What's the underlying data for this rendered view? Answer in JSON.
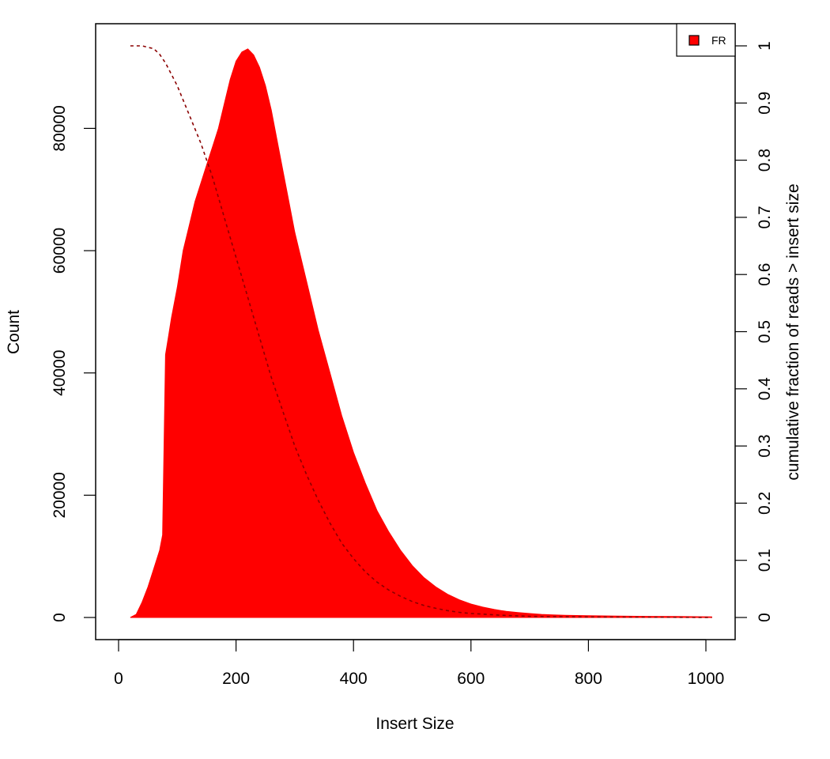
{
  "chart_data": {
    "type": "histogram",
    "xlabel": "Insert Size",
    "ylabel": "Count",
    "y2label": "cumulative fraction of reads > insert size",
    "xlim": [
      0,
      1010
    ],
    "ylim": [
      0,
      93500
    ],
    "y2lim": [
      0,
      1
    ],
    "x_ticks": [
      "0",
      "200",
      "400",
      "600",
      "800",
      "1000"
    ],
    "y_ticks": [
      "0",
      "20000",
      "40000",
      "60000",
      "80000"
    ],
    "y2_ticks": [
      "0",
      "0.1",
      "0.2",
      "0.3",
      "0.4",
      "0.5",
      "0.6",
      "0.7",
      "0.8",
      "0.9",
      "1"
    ],
    "legend": {
      "position": "top-right",
      "entries": [
        {
          "label": "FR",
          "color": "#ff0000"
        }
      ]
    },
    "series": [
      {
        "name": "FR",
        "kind": "histogram",
        "color": "#ff0000",
        "x": [
          20,
          30,
          40,
          50,
          60,
          70,
          75,
          80,
          85,
          90,
          100,
          110,
          120,
          130,
          140,
          150,
          160,
          170,
          180,
          190,
          200,
          210,
          220,
          230,
          240,
          250,
          260,
          270,
          280,
          290,
          300,
          320,
          340,
          360,
          380,
          400,
          420,
          440,
          460,
          480,
          500,
          520,
          540,
          560,
          580,
          600,
          620,
          640,
          660,
          680,
          700,
          720,
          740,
          760,
          780,
          800,
          850,
          900,
          950,
          1000,
          1010
        ],
        "y": [
          0,
          500,
          2500,
          5000,
          8000,
          11000,
          13500,
          43000,
          46000,
          49000,
          54000,
          60000,
          64000,
          68000,
          71000,
          74000,
          77000,
          80000,
          84000,
          88000,
          91000,
          92500,
          93000,
          92000,
          90000,
          87000,
          83000,
          78000,
          73000,
          68000,
          63000,
          55000,
          47000,
          40000,
          33000,
          27000,
          22000,
          17500,
          14000,
          11000,
          8500,
          6500,
          5000,
          3800,
          2900,
          2200,
          1700,
          1300,
          1000,
          800,
          650,
          500,
          420,
          360,
          320,
          280,
          220,
          180,
          150,
          120,
          100
        ]
      },
      {
        "name": "cumulative",
        "kind": "line",
        "axis": "right",
        "color": "#8b0000",
        "dash": "dashed",
        "x": [
          20,
          40,
          60,
          70,
          80,
          90,
          100,
          120,
          140,
          160,
          180,
          200,
          220,
          240,
          260,
          280,
          300,
          320,
          340,
          360,
          380,
          400,
          420,
          440,
          460,
          480,
          500,
          520,
          540,
          560,
          580,
          600,
          650,
          700,
          800,
          900,
          1010
        ],
        "y": [
          1.0,
          1.0,
          0.995,
          0.985,
          0.97,
          0.95,
          0.93,
          0.88,
          0.83,
          0.77,
          0.7,
          0.63,
          0.56,
          0.49,
          0.42,
          0.36,
          0.3,
          0.25,
          0.205,
          0.165,
          0.13,
          0.103,
          0.08,
          0.062,
          0.048,
          0.037,
          0.028,
          0.021,
          0.016,
          0.012,
          0.009,
          0.007,
          0.004,
          0.002,
          0.001,
          0.0005,
          0.0
        ]
      }
    ]
  }
}
